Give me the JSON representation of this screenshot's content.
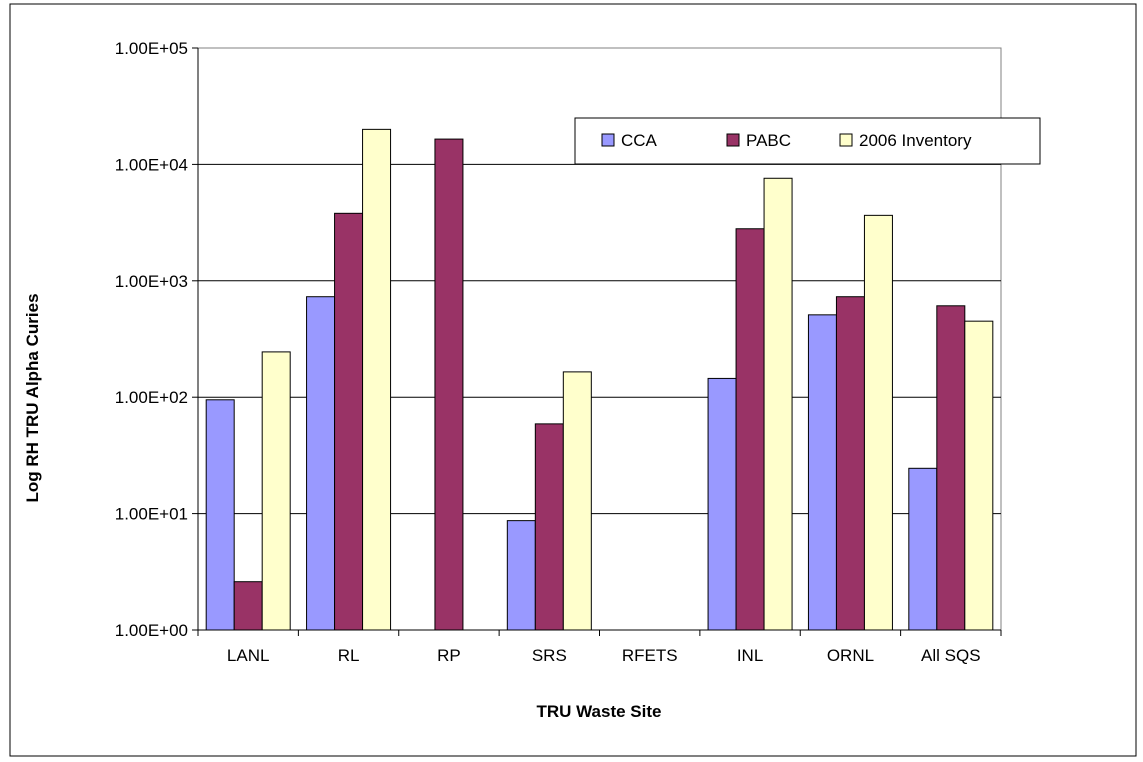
{
  "chart_data": {
    "type": "bar",
    "title": "",
    "xlabel": "TRU Waste Site",
    "ylabel": "Log RH TRU Alpha Curies",
    "yscale": "log",
    "ylim": [
      1,
      100000
    ],
    "yticks": [
      1,
      10,
      100,
      1000,
      10000,
      100000
    ],
    "ytick_labels": [
      "1.00E+00",
      "1.00E+01",
      "1.00E+02",
      "1.00E+03",
      "1.00E+04",
      "1.00E+05"
    ],
    "grid": true,
    "legend_position": "top-right",
    "categories": [
      "LANL",
      "RL",
      "RP",
      "SRS",
      "RFETS",
      "INL",
      "ORNL",
      "All SQS"
    ],
    "series": [
      {
        "name": "CCA",
        "color": "#9999ff",
        "values": [
          95,
          730,
          null,
          8.7,
          null,
          145,
          510,
          24.5
        ]
      },
      {
        "name": "PABC",
        "color": "#993366",
        "values": [
          2.6,
          3800,
          16500,
          59,
          null,
          2800,
          730,
          610
        ]
      },
      {
        "name": "2006 Inventory",
        "color": "#ffffcc",
        "values": [
          245,
          20000,
          null,
          165,
          null,
          7600,
          3650,
          450
        ]
      }
    ]
  }
}
